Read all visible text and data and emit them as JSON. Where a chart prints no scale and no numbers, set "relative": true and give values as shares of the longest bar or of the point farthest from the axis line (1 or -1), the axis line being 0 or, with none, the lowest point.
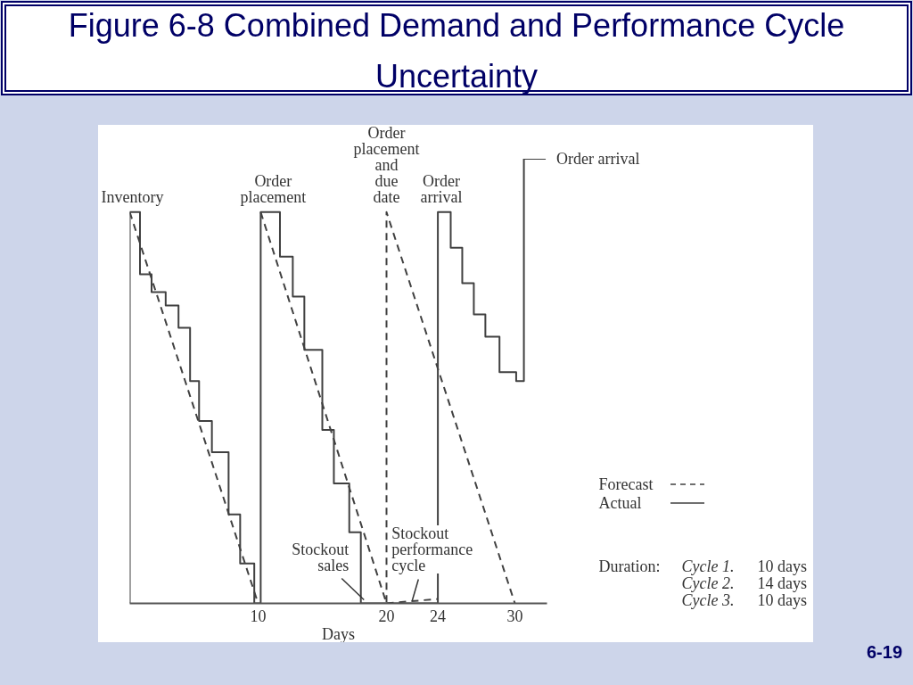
{
  "chart_data": {
    "type": "line",
    "title": "Figure 6-8 Combined Demand and Performance Cycle Uncertainty",
    "xlabel": "Days",
    "ylabel": "Inventory",
    "relative": true,
    "xlim": [
      0,
      32.5
    ],
    "xticks": [
      10,
      20,
      24,
      30
    ],
    "legend": "bottom right",
    "series": [
      {
        "name": "Forecast",
        "line_style": "dashed",
        "color": "#404040",
        "x": [
          0,
          10,
          10.1,
          10.2,
          20,
          20,
          30
        ],
        "values": [
          0.88,
          0,
          null,
          0.88,
          0,
          0.88,
          0
        ]
      },
      {
        "name": "Actual",
        "type": "step",
        "line_style": "solid",
        "color": "#404040",
        "x": [
          0,
          0,
          0.8,
          1.7,
          2.8,
          3.8,
          4.7,
          5.4,
          6.4,
          7.7,
          8.6,
          9.7,
          10.2,
          11.7,
          12.7,
          13.6,
          15,
          15.9,
          17.1,
          18,
          24,
          25,
          25.9,
          26.8,
          27.7,
          28.8,
          30.1,
          30.7,
          32.4
        ],
        "values": [
          0,
          0.88,
          0.74,
          0.7,
          0.67,
          0.62,
          0.5,
          0.41,
          0.34,
          0.2,
          0.09,
          0,
          0.88,
          0.78,
          0.69,
          0.57,
          0.39,
          0.27,
          0.16,
          0,
          0.88,
          0.8,
          0.72,
          0.65,
          0.6,
          0.52,
          0.5,
          1,
          1
        ]
      },
      {
        "line_style": "dashed",
        "color": "#404040",
        "x": [
          20,
          24
        ],
        "values": [
          0,
          0.01
        ]
      }
    ],
    "annotations": [
      {
        "text": "Order placement",
        "x": 10.2,
        "y": 0.88
      },
      {
        "text": "Order placement and due date",
        "x": 20,
        "y": 0.88
      },
      {
        "text": "Order arrival",
        "x": 24,
        "y": 0.88
      },
      {
        "text": "Order arrival",
        "x": 32.4,
        "y": 1
      },
      {
        "text": "Stockout sales",
        "x": 18.8,
        "y": 0
      },
      {
        "text": "Stockout performance cycle",
        "x": 22,
        "y": 0
      },
      "Duration:",
      "Cycle 1.",
      "10 days",
      "Cycle 2.",
      "14 days",
      "Cycle 3.",
      "10 days",
      "6-19"
    ]
  }
}
